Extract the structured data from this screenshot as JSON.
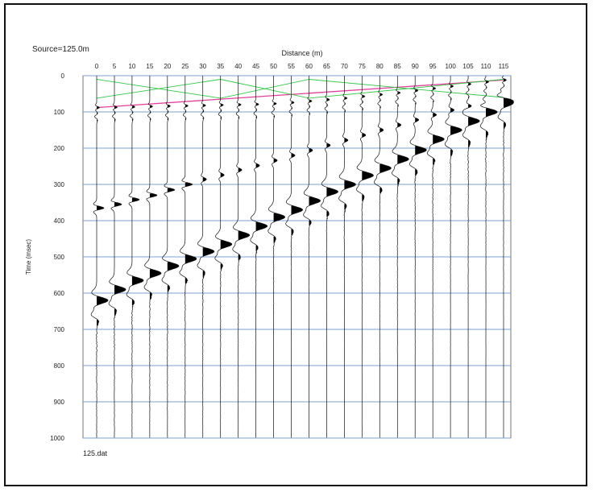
{
  "source_label": "Source=125.0m",
  "file_label": "125.dat",
  "chart_data": {
    "type": "seismogram",
    "title": "",
    "xlabel": "Distance (m)",
    "ylabel": "Time (msec)",
    "x_ticks": [
      0,
      5,
      10,
      15,
      20,
      25,
      30,
      35,
      40,
      45,
      50,
      55,
      60,
      65,
      70,
      75,
      80,
      85,
      90,
      95,
      100,
      105,
      110,
      115
    ],
    "y_ticks": [
      0,
      100,
      200,
      300,
      400,
      500,
      600,
      700,
      800,
      900,
      1000
    ],
    "xlim": [
      0,
      115
    ],
    "ylim": [
      0,
      1000
    ],
    "grid": true,
    "trace_offsets": [
      0,
      5,
      10,
      15,
      20,
      25,
      30,
      35,
      40,
      45,
      50,
      55,
      60,
      65,
      70,
      75,
      80,
      85,
      90,
      95,
      100,
      105,
      110,
      115
    ],
    "first_arrival_times_msec": [
      88,
      87,
      86,
      85,
      84,
      83,
      82,
      81,
      80,
      79,
      77,
      74,
      70,
      66,
      62,
      57,
      52,
      47,
      41,
      35,
      29,
      23,
      17,
      12
    ],
    "direct_wave_times_msec": [
      620,
      590,
      565,
      545,
      525,
      505,
      485,
      465,
      440,
      415,
      390,
      370,
      345,
      320,
      300,
      275,
      255,
      230,
      205,
      175,
      150,
      125,
      100,
      75
    ],
    "refracted_wave_times_msec": [
      365,
      355,
      342,
      330,
      315,
      300,
      286,
      274,
      260,
      248,
      234,
      220,
      206,
      192,
      178,
      164,
      150,
      136,
      122,
      108,
      95,
      84,
      74,
      65
    ],
    "overlay_lines": [
      {
        "name": "",
        "color": "#e0409a",
        "points": [
          [
            0,
            88
          ],
          [
            115,
            12
          ]
        ]
      },
      {
        "name": "",
        "color": "#35c64a",
        "points": [
          [
            0,
            10
          ],
          [
            35,
            62
          ],
          [
            60,
            10
          ],
          [
            115,
            60
          ]
        ]
      },
      {
        "name": "",
        "color": "#35c64a",
        "points": [
          [
            0,
            62
          ],
          [
            35,
            10
          ],
          [
            60,
            62
          ],
          [
            115,
            10
          ]
        ]
      }
    ],
    "colors": {
      "frame": "#111111",
      "grid": "#7ba0d2",
      "trace": "#111111",
      "fill": "#000000",
      "pink_line": "#e0409a",
      "green_line": "#35c64a"
    }
  }
}
